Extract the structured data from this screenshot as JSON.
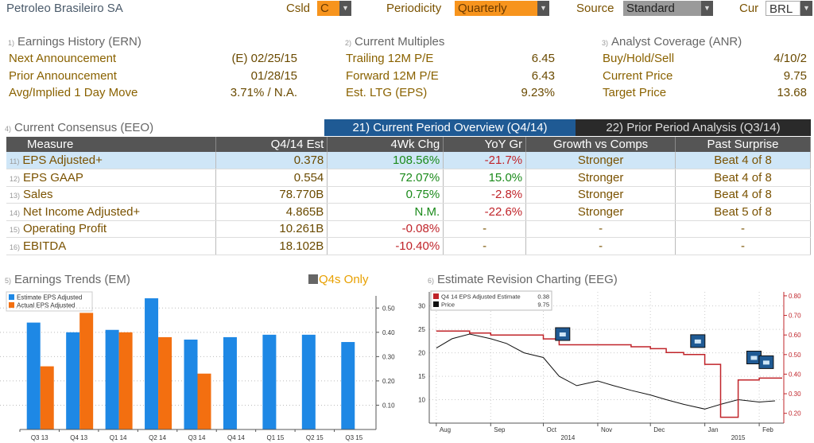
{
  "header": {
    "company": "Petroleo Brasileiro SA",
    "csld_label": "Csld",
    "csld_value": "C",
    "periodicity_label": "Periodicity",
    "periodicity_value": "Quarterly",
    "source_label": "Source",
    "source_value": "Standard",
    "cur_label": "Cur",
    "cur_value": "BRL"
  },
  "earnings_history": {
    "num": "1)",
    "title": "Earnings History (ERN)",
    "rows": [
      {
        "label": "Next Announcement",
        "value": "(E)  02/25/15"
      },
      {
        "label": "Prior Announcement",
        "value": "01/28/15"
      },
      {
        "label": "Avg/Implied 1 Day Move",
        "value": "3.71% / N.A."
      }
    ]
  },
  "current_multiples": {
    "num": "2)",
    "title": "Current Multiples",
    "rows": [
      {
        "label": "Trailing 12M P/E",
        "value": "6.45"
      },
      {
        "label": "Forward 12M P/E",
        "value": "6.43"
      },
      {
        "label": "Est. LTG (EPS)",
        "value": "9.23%"
      }
    ]
  },
  "analyst_coverage": {
    "num": "3)",
    "title": "Analyst Coverage (ANR)",
    "rows": [
      {
        "label": "Buy/Hold/Sell",
        "value": "4/10/2"
      },
      {
        "label": "Current Price",
        "value": "9.75"
      },
      {
        "label": "Target Price",
        "value": "13.68"
      }
    ]
  },
  "consensus": {
    "num": "4)",
    "title": "Current Consensus (EEO)",
    "tab_current": "21) Current Period Overview (Q4/14)",
    "tab_prior": "22) Prior Period Analysis (Q3/14)",
    "columns": [
      "Measure",
      "Q4/14 Est",
      "4Wk Chg",
      "YoY Gr",
      "Growth vs Comps",
      "Past Surprise"
    ],
    "rows": [
      {
        "num": "11)",
        "measure": "EPS Adjusted+",
        "est": "0.378",
        "chg": "108.56%",
        "chg_sign": "pos",
        "yoy": "-21.7%",
        "yoy_sign": "neg",
        "comps": "Stronger",
        "surprise": "Beat 4 of 8"
      },
      {
        "num": "12)",
        "measure": "EPS GAAP",
        "est": "0.554",
        "chg": "72.07%",
        "chg_sign": "pos",
        "yoy": "15.0%",
        "yoy_sign": "pos",
        "comps": "Stronger",
        "surprise": "Beat 4 of 8"
      },
      {
        "num": "13)",
        "measure": "Sales",
        "est": "78.770B",
        "chg": "0.75%",
        "chg_sign": "pos",
        "yoy": "-2.8%",
        "yoy_sign": "neg",
        "comps": "Stronger",
        "surprise": "Beat 4 of 8"
      },
      {
        "num": "14)",
        "measure": "Net Income Adjusted+",
        "est": "4.865B",
        "chg": "N.M.",
        "chg_sign": "pos",
        "yoy": "-22.6%",
        "yoy_sign": "neg",
        "comps": "Stronger",
        "surprise": "Beat 5 of 8"
      },
      {
        "num": "15)",
        "measure": "Operating Profit",
        "est": "10.261B",
        "chg": "-0.08%",
        "chg_sign": "neg",
        "yoy": "-",
        "yoy_sign": "none",
        "comps": "-",
        "surprise": "-"
      },
      {
        "num": "16)",
        "measure": "EBITDA",
        "est": "18.102B",
        "chg": "-10.40%",
        "chg_sign": "neg",
        "yoy": "-",
        "yoy_sign": "none",
        "comps": "-",
        "surprise": "-"
      }
    ]
  },
  "earnings_trends": {
    "num": "5)",
    "title": "Earnings Trends (EM)",
    "q4s_label": "Q4s Only",
    "legend": [
      "Estimate EPS Adjusted",
      "Actual EPS Adjusted"
    ],
    "colors": {
      "estimate": "#1e88e5",
      "actual": "#f36f10"
    },
    "yticks": [
      "0.50",
      "0.40",
      "0.30",
      "0.20",
      "0.10"
    ]
  },
  "estimate_revision": {
    "num": "6)",
    "title": "Estimate Revision Charting (EEG)",
    "legend": [
      {
        "label": "Q4 14 EPS Adjusted Estimate",
        "value": "0.38"
      },
      {
        "label": "Price",
        "value": "9.75"
      }
    ],
    "left_ticks": [
      "30",
      "25",
      "20",
      "15",
      "10"
    ],
    "right_ticks": [
      "0.80",
      "0.70",
      "0.60",
      "0.50",
      "0.40",
      "0.30",
      "0.20"
    ],
    "months": [
      "Aug",
      "Sep",
      "Oct",
      "Nov",
      "Dec",
      "Jan",
      "Feb"
    ],
    "years": [
      "2014",
      "2015"
    ]
  },
  "chart_data": [
    {
      "type": "bar",
      "title": "Earnings Trends (EM)",
      "categories": [
        "Q3 13",
        "Q4 13",
        "Q1 14",
        "Q2 14",
        "Q3 14",
        "Q4 14",
        "Q1 15",
        "Q2 15",
        "Q3 15"
      ],
      "series": [
        {
          "name": "Estimate EPS Adjusted",
          "values": [
            0.44,
            0.4,
            0.41,
            0.54,
            0.37,
            0.38,
            0.39,
            0.39,
            0.36
          ]
        },
        {
          "name": "Actual EPS Adjusted",
          "values": [
            0.26,
            0.48,
            0.4,
            0.38,
            0.23,
            null,
            null,
            null,
            null
          ]
        }
      ],
      "ylim": [
        0,
        0.55
      ],
      "legend_position": "top-left",
      "grid": true
    },
    {
      "type": "line",
      "title": "Estimate Revision Charting (EEG)",
      "x": [
        "2014-08-01",
        "2014-08-10",
        "2014-08-20",
        "2014-09-01",
        "2014-09-10",
        "2014-09-20",
        "2014-10-01",
        "2014-10-10",
        "2014-10-20",
        "2014-11-01",
        "2014-11-10",
        "2014-11-20",
        "2014-12-01",
        "2014-12-10",
        "2014-12-20",
        "2015-01-01",
        "2015-01-10",
        "2015-01-20",
        "2015-02-01",
        "2015-02-10"
      ],
      "series": [
        {
          "name": "Price",
          "axis": "left",
          "values": [
            21,
            23,
            24,
            23,
            22,
            20,
            19,
            15,
            13,
            14,
            13,
            12,
            11,
            10,
            9,
            8,
            9,
            10,
            9.5,
            9.75
          ]
        },
        {
          "name": "Q4 14 EPS Adjusted Estimate",
          "axis": "right",
          "values": [
            0.62,
            0.62,
            0.61,
            0.6,
            0.6,
            0.6,
            0.58,
            0.55,
            0.55,
            0.55,
            0.55,
            0.54,
            0.53,
            0.51,
            0.5,
            0.45,
            0.18,
            0.37,
            0.38,
            0.38
          ]
        }
      ],
      "ylim_left": [
        5,
        33
      ],
      "ylim_right": [
        0.15,
        0.82
      ],
      "legend_position": "top-left",
      "grid": true
    }
  ]
}
